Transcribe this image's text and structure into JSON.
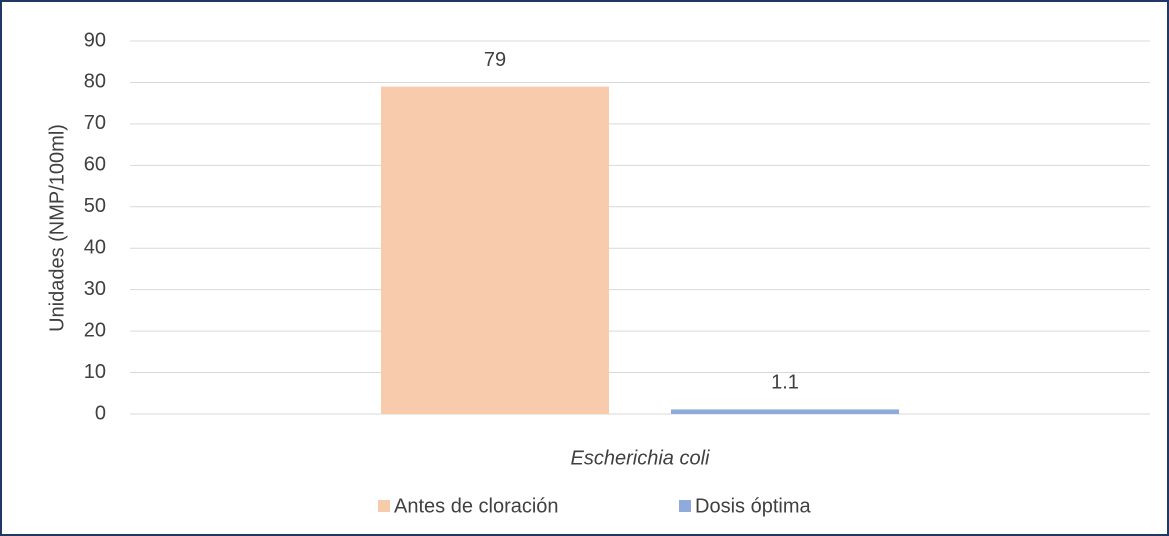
{
  "chart_data": {
    "type": "bar",
    "y_label": "Unidades (NMP/100ml)",
    "categories": [
      "Escherichia coli"
    ],
    "series": [
      {
        "name": "Antes de cloración",
        "color": "#f8cbad",
        "values": [
          79
        ]
      },
      {
        "name": "Dosis óptima",
        "color": "#8faadc",
        "values": [
          1.1
        ]
      }
    ],
    "ylim": [
      0,
      90
    ],
    "yticks": [
      0,
      10,
      20,
      30,
      40,
      50,
      60,
      70,
      80,
      90
    ],
    "grid": true,
    "legend": "bottom"
  }
}
